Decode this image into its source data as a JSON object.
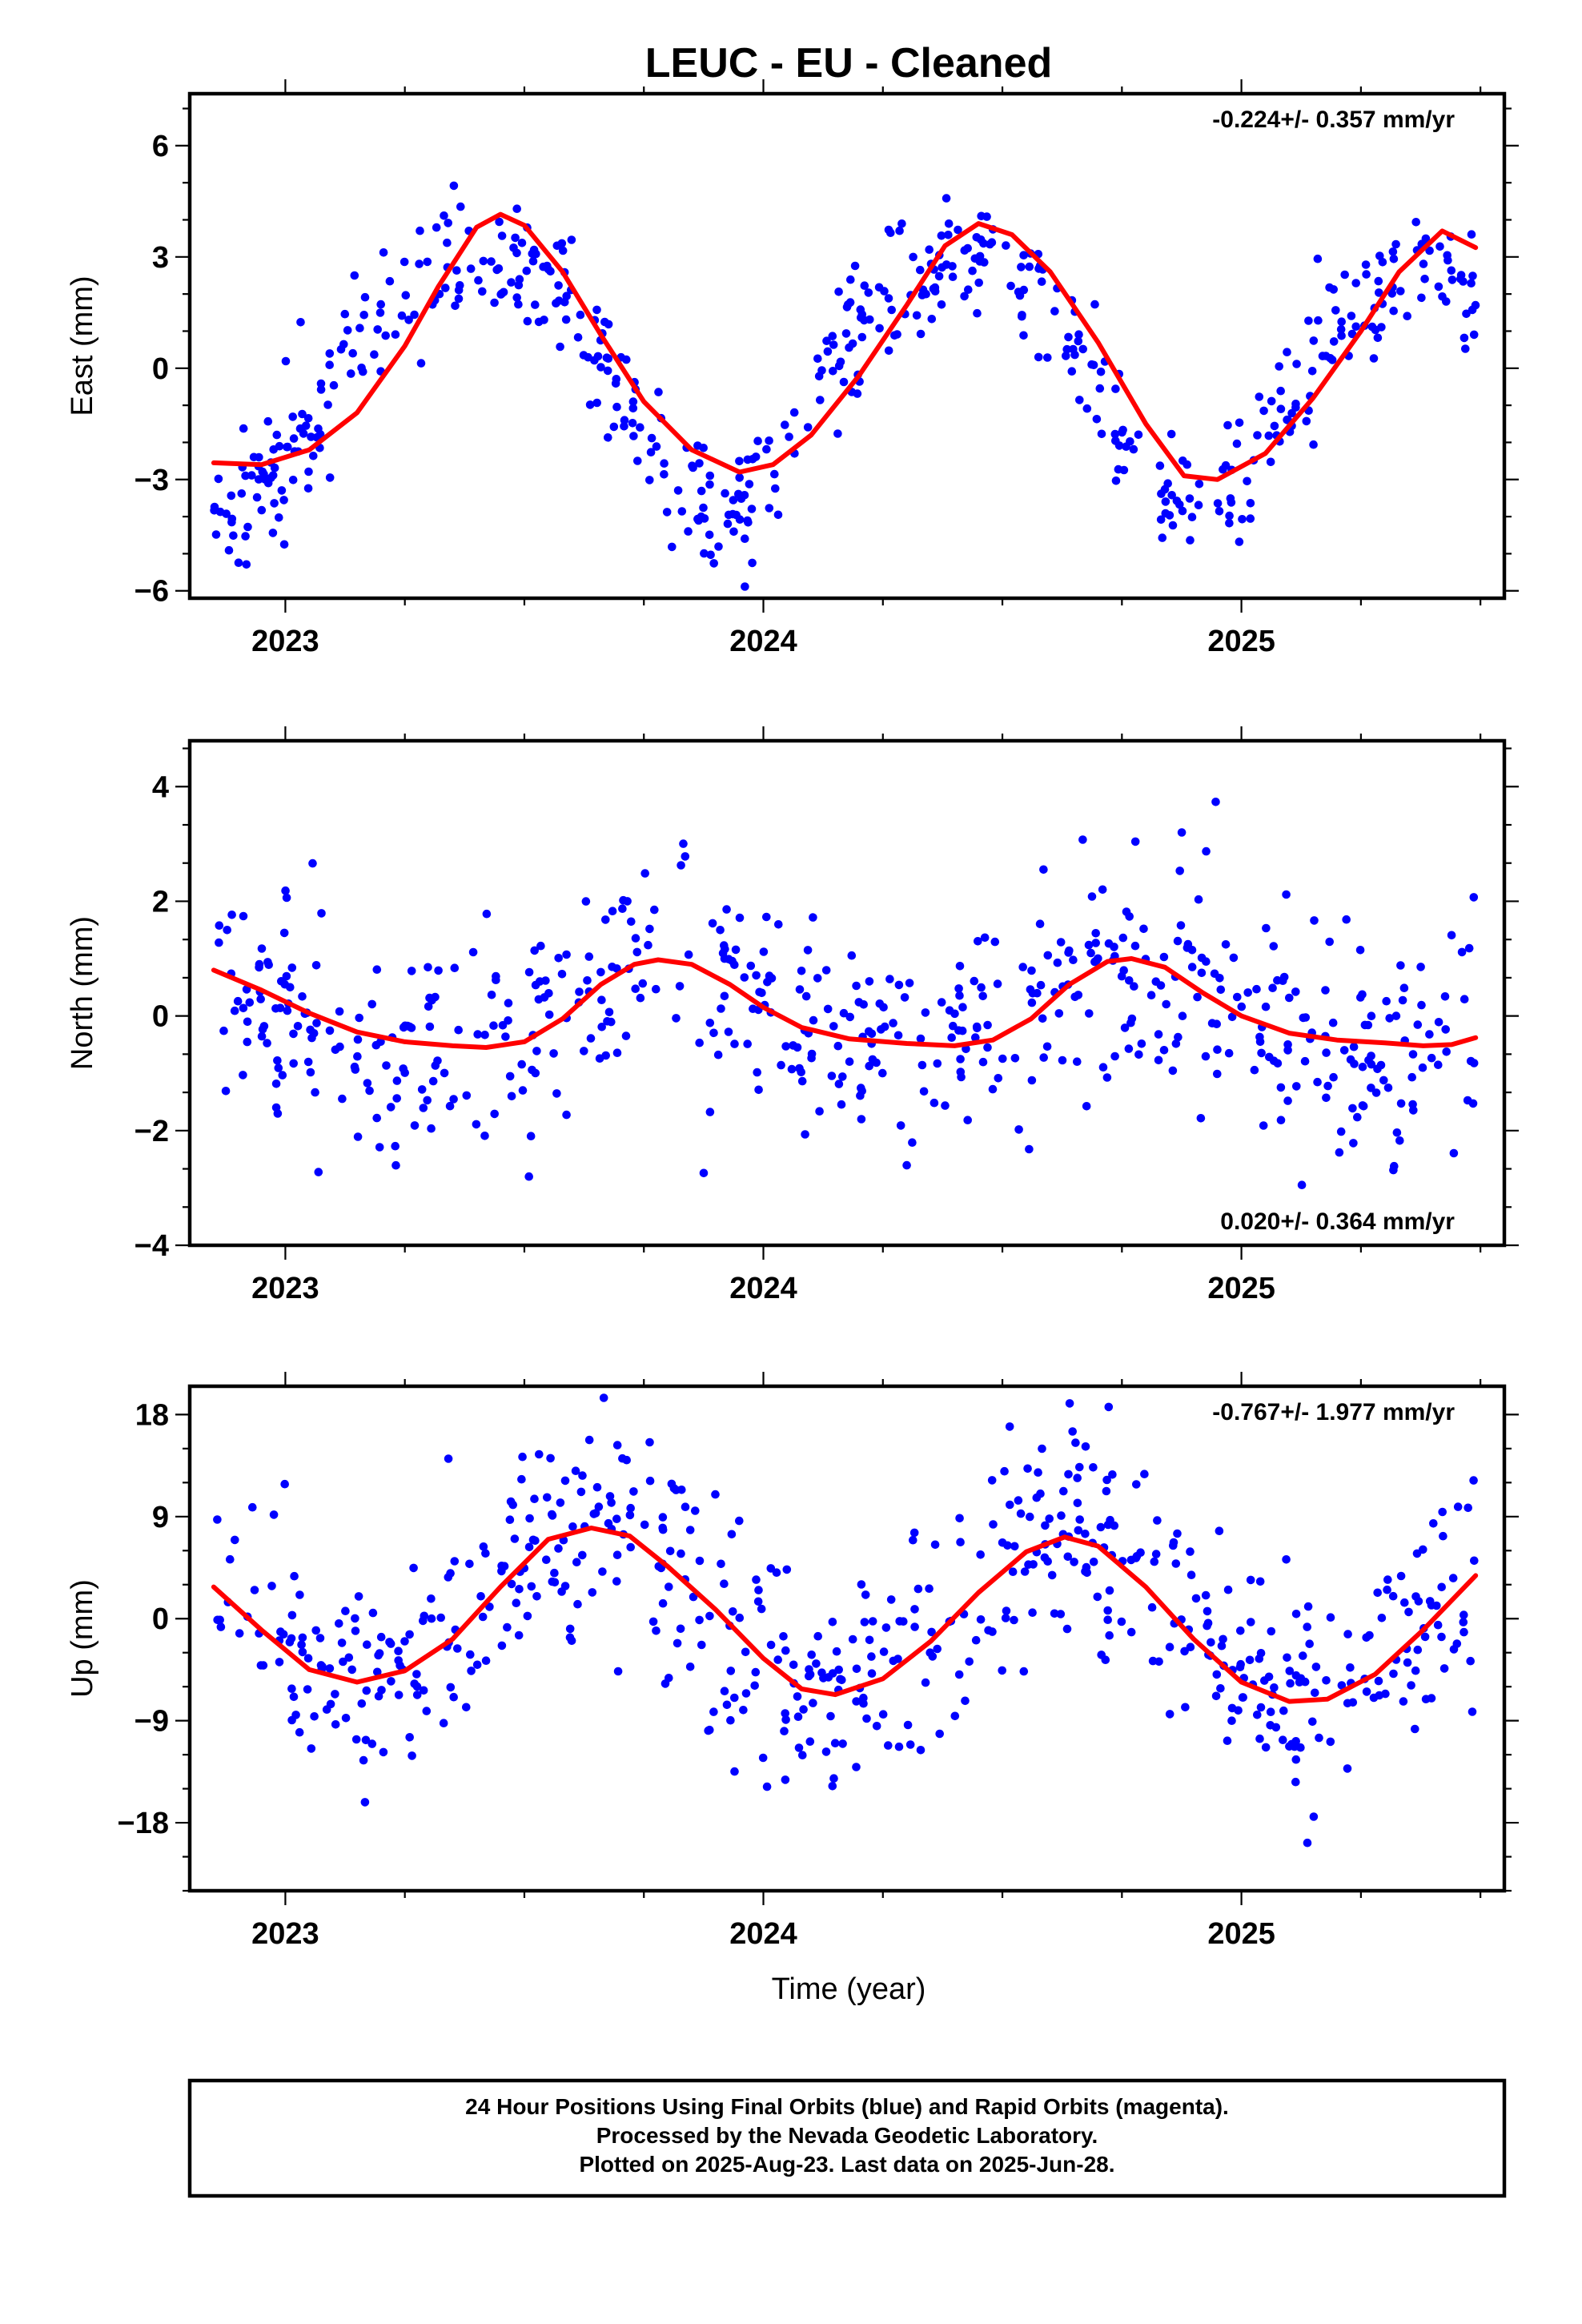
{
  "title": "LEUC  - EU - Cleaned",
  "xlabel": "Time (year)",
  "footer": {
    "line1": "24 Hour Positions Using Final Orbits (blue) and Rapid Orbits (magenta).",
    "line2": "Processed by the Nevada Geodetic Laboratory.",
    "line3": "Plotted on 2025-Aug-23. Last data on 2025-Jun-28."
  },
  "colors": {
    "final_orbits": "#0000ff",
    "rapid_orbits": "#ff00ff",
    "fit": "#ff0000"
  },
  "chart_data": [
    {
      "type": "scatter",
      "ylabel": "East (mm)",
      "rate_text": "-0.224+/- 0.357 mm/yr",
      "rate_position": "top-right",
      "xlim": [
        2022.8,
        2025.55
      ],
      "ylim": [
        -6.2,
        7.4
      ],
      "x_ticks": [
        2023,
        2024,
        2025
      ],
      "y_ticks": [
        -6,
        -3,
        0,
        3,
        6
      ],
      "y_tick_labels": [
        "−6",
        "−3",
        "0",
        "3",
        "6"
      ],
      "grid": false,
      "series": [
        {
          "kind": "points",
          "color": "#0000ff",
          "generator": {
            "start": 2022.85,
            "end": 2025.49,
            "count": 560,
            "mean": 0,
            "trend_mm_per_yr": -0.224,
            "annual_amp": 3.3,
            "annual_peak": 2023.41,
            "semiannual_amp": 0.5,
            "semiannual_peak": 2023.16,
            "noise_sd": 0.95,
            "seed": 11
          }
        },
        {
          "kind": "fit",
          "color": "#ff0000",
          "values": [
            [
              2022.85,
              -2.55
            ],
            [
              2022.95,
              -2.6
            ],
            [
              2023.05,
              -2.2
            ],
            [
              2023.15,
              -1.2
            ],
            [
              2023.25,
              0.6
            ],
            [
              2023.32,
              2.2
            ],
            [
              2023.4,
              3.8
            ],
            [
              2023.45,
              4.15
            ],
            [
              2023.5,
              3.85
            ],
            [
              2023.58,
              2.6
            ],
            [
              2023.66,
              0.9
            ],
            [
              2023.75,
              -0.9
            ],
            [
              2023.85,
              -2.2
            ],
            [
              2023.95,
              -2.8
            ],
            [
              2024.02,
              -2.6
            ],
            [
              2024.1,
              -1.8
            ],
            [
              2024.2,
              -0.2
            ],
            [
              2024.3,
              1.7
            ],
            [
              2024.38,
              3.3
            ],
            [
              2024.45,
              3.9
            ],
            [
              2024.52,
              3.6
            ],
            [
              2024.6,
              2.6
            ],
            [
              2024.7,
              0.7
            ],
            [
              2024.8,
              -1.5
            ],
            [
              2024.88,
              -2.9
            ],
            [
              2024.95,
              -3.0
            ],
            [
              2025.05,
              -2.3
            ],
            [
              2025.15,
              -0.8
            ],
            [
              2025.25,
              1.0
            ],
            [
              2025.33,
              2.6
            ],
            [
              2025.42,
              3.7
            ],
            [
              2025.49,
              3.25
            ]
          ]
        }
      ]
    },
    {
      "type": "scatter",
      "ylabel": "North (mm)",
      "rate_text": "0.020+/- 0.364 mm/yr",
      "rate_position": "bottom-right",
      "xlim": [
        2022.8,
        2025.55
      ],
      "ylim": [
        -4.0,
        4.8
      ],
      "x_ticks": [
        2023,
        2024,
        2025
      ],
      "y_ticks": [
        -4,
        -2,
        0,
        2,
        4
      ],
      "y_tick_labels": [
        "−4",
        "−2",
        "0",
        "2",
        "4"
      ],
      "grid": false,
      "series": [
        {
          "kind": "points",
          "color": "#0000ff",
          "generator": {
            "start": 2022.85,
            "end": 2025.49,
            "count": 560,
            "mean": 0.1,
            "trend_mm_per_yr": 0.02,
            "annual_amp": 0.75,
            "annual_peak": 2023.78,
            "semiannual_amp": 0.0,
            "semiannual_peak": 2023.0,
            "noise_sd": 0.95,
            "seed": 23
          }
        },
        {
          "kind": "fit",
          "color": "#ff0000",
          "values": [
            [
              2022.85,
              0.8
            ],
            [
              2022.95,
              0.45
            ],
            [
              2023.05,
              0.05
            ],
            [
              2023.15,
              -0.28
            ],
            [
              2023.25,
              -0.45
            ],
            [
              2023.35,
              -0.52
            ],
            [
              2023.42,
              -0.55
            ],
            [
              2023.5,
              -0.45
            ],
            [
              2023.58,
              -0.05
            ],
            [
              2023.66,
              0.55
            ],
            [
              2023.73,
              0.9
            ],
            [
              2023.78,
              0.98
            ],
            [
              2023.85,
              0.9
            ],
            [
              2023.93,
              0.55
            ],
            [
              2024.0,
              0.15
            ],
            [
              2024.08,
              -0.2
            ],
            [
              2024.18,
              -0.4
            ],
            [
              2024.3,
              -0.48
            ],
            [
              2024.4,
              -0.52
            ],
            [
              2024.48,
              -0.42
            ],
            [
              2024.56,
              -0.05
            ],
            [
              2024.64,
              0.55
            ],
            [
              2024.72,
              0.95
            ],
            [
              2024.77,
              1.0
            ],
            [
              2024.84,
              0.85
            ],
            [
              2024.92,
              0.4
            ],
            [
              2025.0,
              0.0
            ],
            [
              2025.1,
              -0.3
            ],
            [
              2025.2,
              -0.42
            ],
            [
              2025.3,
              -0.47
            ],
            [
              2025.38,
              -0.52
            ],
            [
              2025.44,
              -0.5
            ],
            [
              2025.49,
              -0.38
            ]
          ]
        }
      ]
    },
    {
      "type": "scatter",
      "ylabel": "Up (mm)",
      "rate_text": "-0.767+/- 1.977 mm/yr",
      "rate_position": "top-right",
      "xlim": [
        2022.8,
        2025.55
      ],
      "ylim": [
        -24,
        20.5
      ],
      "x_ticks": [
        2023,
        2024,
        2025
      ],
      "y_ticks": [
        -18,
        -9,
        0,
        9,
        18
      ],
      "y_tick_labels": [
        "−18",
        "−9",
        "0",
        "9",
        "18"
      ],
      "grid": false,
      "series": [
        {
          "kind": "points",
          "color": "#0000ff",
          "generator": {
            "start": 2022.85,
            "end": 2025.49,
            "count": 600,
            "mean": 0.5,
            "trend_mm_per_yr": -0.767,
            "annual_amp": 7.4,
            "annual_peak": 2023.64,
            "semiannual_amp": 0.0,
            "semiannual_peak": 2023.0,
            "noise_sd": 5.0,
            "seed": 37
          }
        },
        {
          "kind": "fit",
          "color": "#ff0000",
          "values": [
            [
              2022.85,
              2.8
            ],
            [
              2022.95,
              -1.0
            ],
            [
              2023.05,
              -4.5
            ],
            [
              2023.15,
              -5.6
            ],
            [
              2023.25,
              -4.6
            ],
            [
              2023.35,
              -1.8
            ],
            [
              2023.45,
              2.8
            ],
            [
              2023.55,
              7.0
            ],
            [
              2023.64,
              8.0
            ],
            [
              2023.72,
              7.3
            ],
            [
              2023.8,
              4.6
            ],
            [
              2023.9,
              0.8
            ],
            [
              2024.0,
              -3.5
            ],
            [
              2024.08,
              -6.2
            ],
            [
              2024.15,
              -6.7
            ],
            [
              2024.25,
              -5.3
            ],
            [
              2024.35,
              -2.0
            ],
            [
              2024.45,
              2.3
            ],
            [
              2024.55,
              5.9
            ],
            [
              2024.63,
              7.2
            ],
            [
              2024.7,
              6.4
            ],
            [
              2024.8,
              2.8
            ],
            [
              2024.9,
              -1.8
            ],
            [
              2025.0,
              -5.6
            ],
            [
              2025.1,
              -7.3
            ],
            [
              2025.18,
              -7.1
            ],
            [
              2025.28,
              -4.9
            ],
            [
              2025.38,
              -1.0
            ],
            [
              2025.49,
              3.8
            ]
          ]
        }
      ]
    }
  ]
}
